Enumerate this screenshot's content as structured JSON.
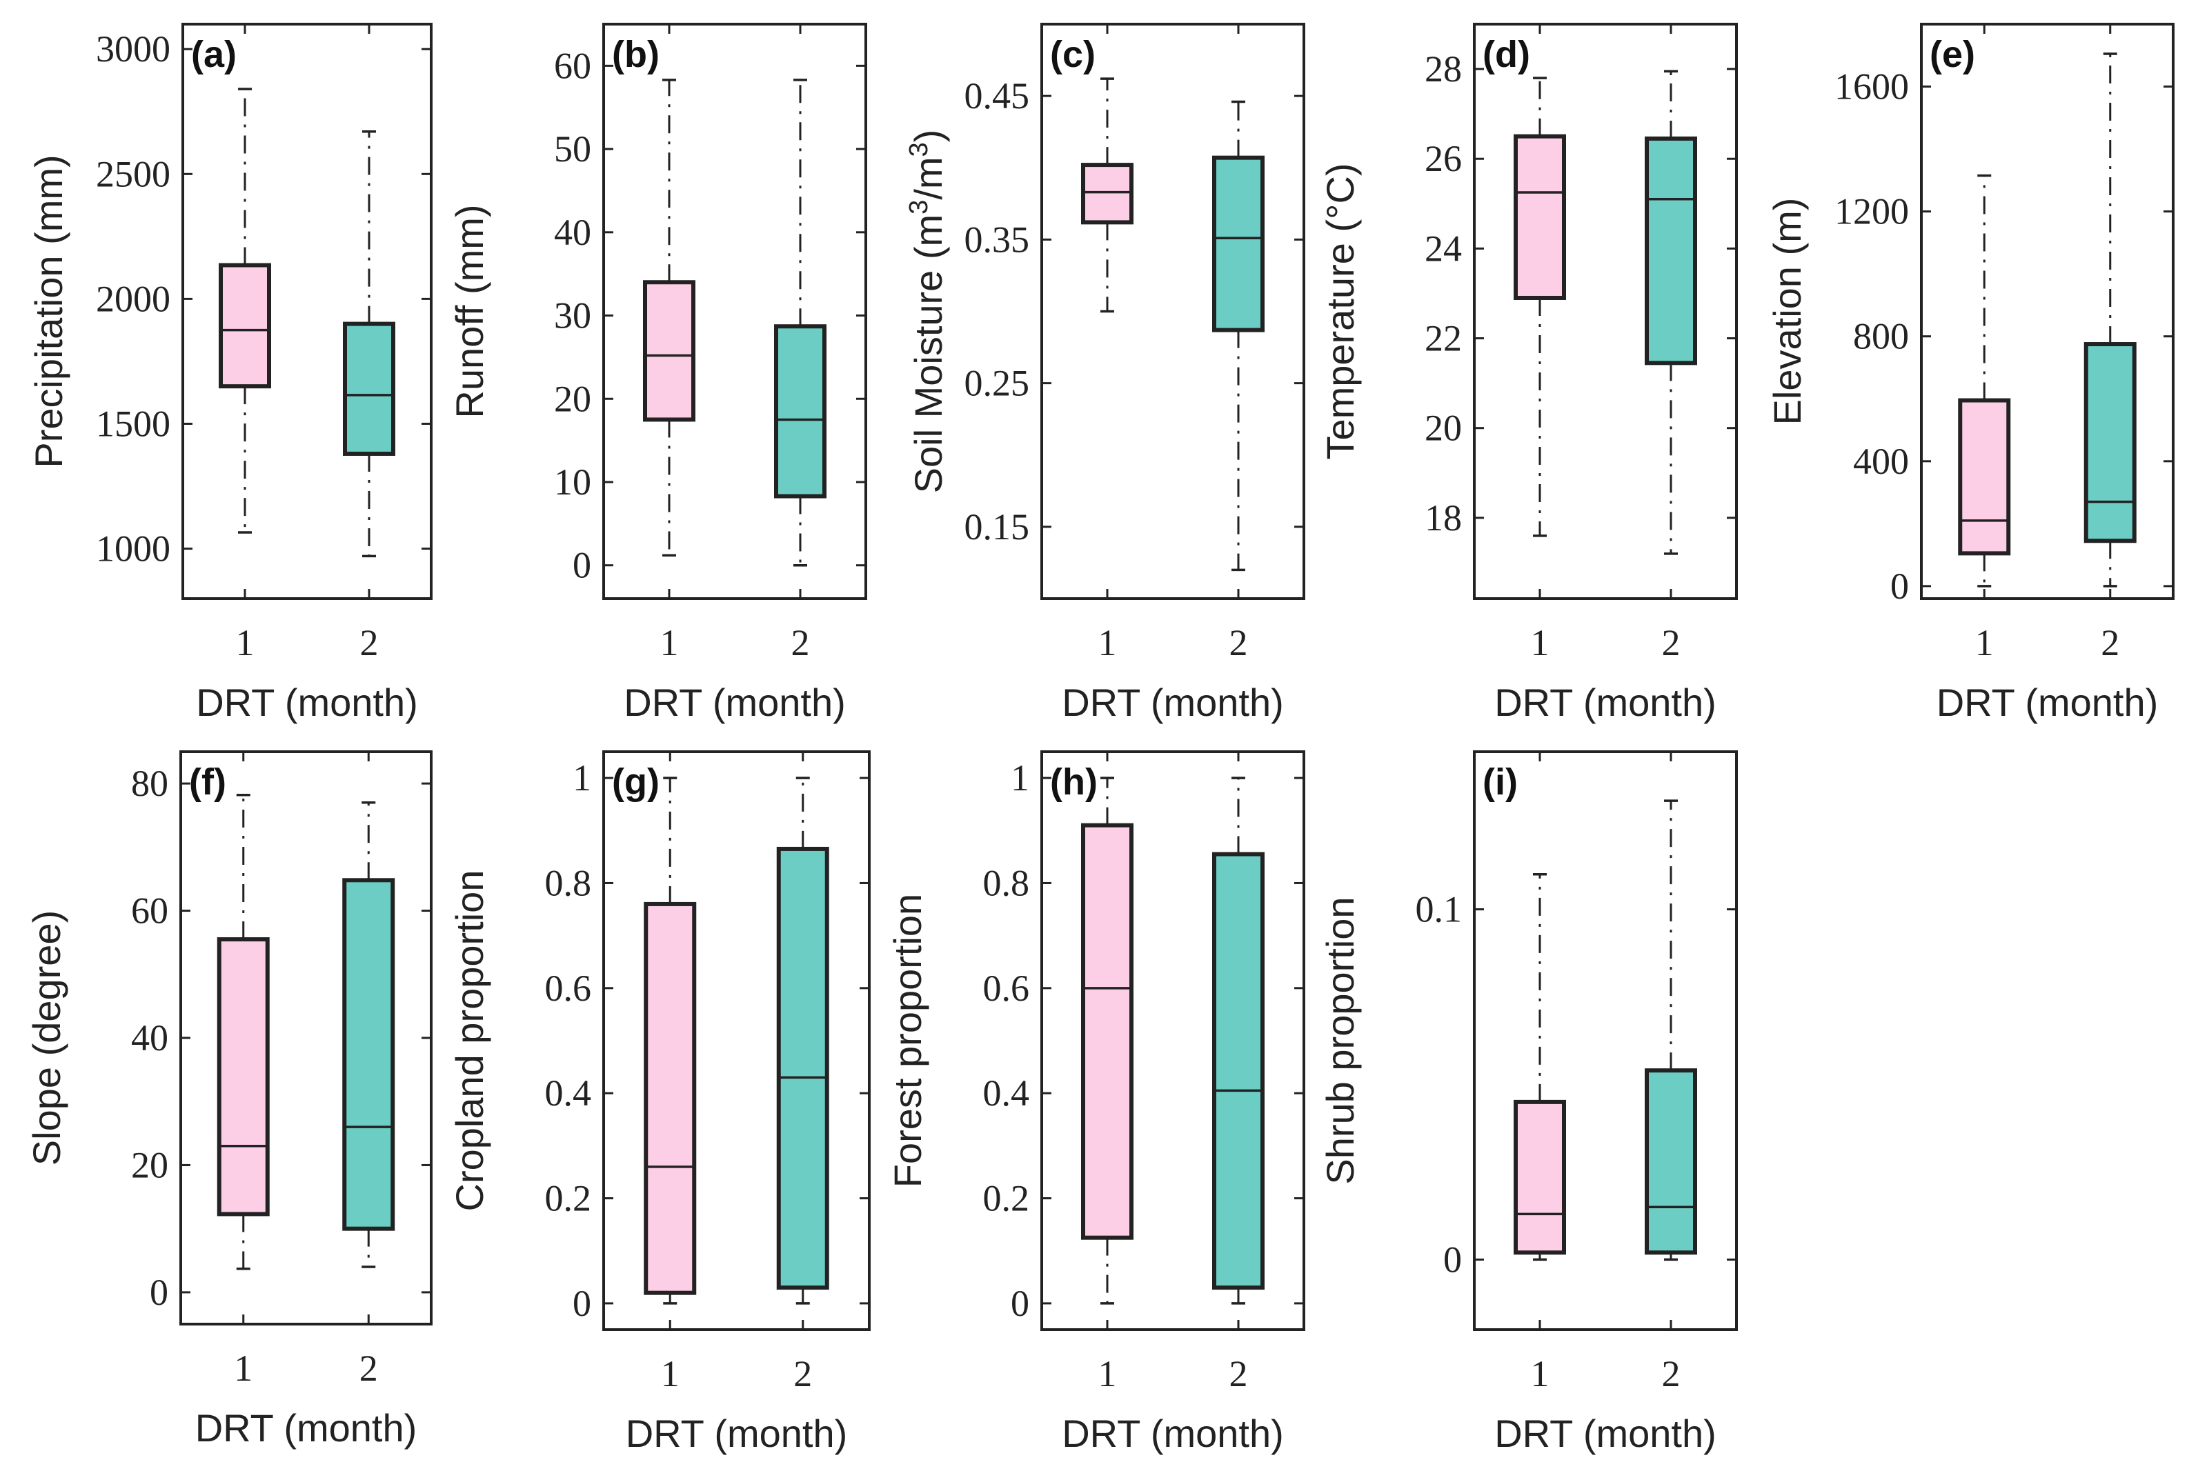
{
  "colors": {
    "dr1": "#fdcfe6",
    "dr2": "#6ccdc4",
    "ink": "#222222"
  },
  "chart_data": [
    {
      "type": "box",
      "panel": "(a)",
      "ylabel": "Precipitation (mm)",
      "xlabel": "DRT (month)",
      "categories": [
        "1",
        "2"
      ],
      "ylim": [
        800,
        3100
      ],
      "yticks": [
        1000,
        1500,
        2000,
        2500,
        3000
      ],
      "ytick_labels": [
        "1000",
        "1500",
        "2000",
        "2500",
        "3000"
      ],
      "boxes": [
        {
          "category": "1",
          "min": 1065,
          "q1": 1650,
          "median": 1875,
          "q3": 2135,
          "max": 2840
        },
        {
          "category": "2",
          "min": 970,
          "q1": 1380,
          "median": 1615,
          "q3": 1900,
          "max": 2670
        }
      ]
    },
    {
      "type": "box",
      "panel": "(b)",
      "ylabel": "Runoff (mm)",
      "xlabel": "DRT (month)",
      "categories": [
        "1",
        "2"
      ],
      "ylim": [
        -4,
        65
      ],
      "yticks": [
        0,
        10,
        20,
        30,
        40,
        50,
        60
      ],
      "ytick_labels": [
        "0",
        "10",
        "20",
        "30",
        "40",
        "50",
        "60"
      ],
      "boxes": [
        {
          "category": "1",
          "min": 1.2,
          "q1": 17.5,
          "median": 25.2,
          "q3": 34,
          "max": 58.3
        },
        {
          "category": "2",
          "min": 0,
          "q1": 8.3,
          "median": 17.5,
          "q3": 28.7,
          "max": 58.3
        }
      ]
    },
    {
      "type": "box",
      "panel": "(c)",
      "ylabel": "Soil Moisture (m3/m3)",
      "xlabel": "DRT (month)",
      "categories": [
        "1",
        "2"
      ],
      "ylim": [
        0.1,
        0.5
      ],
      "yticks": [
        0.15,
        0.25,
        0.35,
        0.45
      ],
      "ytick_labels": [
        "0.15",
        "0.25",
        "0.35",
        "0.45"
      ],
      "boxes": [
        {
          "category": "1",
          "min": 0.3,
          "q1": 0.362,
          "median": 0.383,
          "q3": 0.402,
          "max": 0.462
        },
        {
          "category": "2",
          "min": 0.12,
          "q1": 0.287,
          "median": 0.351,
          "q3": 0.407,
          "max": 0.446
        }
      ]
    },
    {
      "type": "box",
      "panel": "(d)",
      "ylabel": "Temperature (°C)",
      "xlabel": "DRT (month)",
      "categories": [
        "1",
        "2"
      ],
      "ylim": [
        16.2,
        29
      ],
      "yticks": [
        18,
        20,
        22,
        24,
        26,
        28
      ],
      "ytick_labels": [
        "18",
        "20",
        "22",
        "24",
        "26",
        "28"
      ],
      "boxes": [
        {
          "category": "1",
          "min": 17.6,
          "q1": 22.9,
          "median": 25.25,
          "q3": 26.5,
          "max": 27.8
        },
        {
          "category": "2",
          "min": 17.2,
          "q1": 21.45,
          "median": 25.1,
          "q3": 26.45,
          "max": 27.95
        }
      ]
    },
    {
      "type": "box",
      "panel": "(e)",
      "ylabel": "Elevation (m)",
      "xlabel": "DRT (month)",
      "categories": [
        "1",
        "2"
      ],
      "ylim": [
        -40,
        1800
      ],
      "yticks": [
        0,
        400,
        800,
        1200,
        1600
      ],
      "ytick_labels": [
        "0",
        "400",
        "800",
        "1200",
        "1600"
      ],
      "boxes": [
        {
          "category": "1",
          "min": 0,
          "q1": 105,
          "median": 210,
          "q3": 595,
          "max": 1315
        },
        {
          "category": "2",
          "min": 0,
          "q1": 145,
          "median": 270,
          "q3": 775,
          "max": 1705
        }
      ]
    },
    {
      "type": "box",
      "panel": "(f)",
      "ylabel": "Slope (degree)",
      "xlabel": "DRT (month)",
      "categories": [
        "1",
        "2"
      ],
      "ylim": [
        -5,
        85
      ],
      "yticks": [
        0,
        20,
        40,
        60,
        80
      ],
      "ytick_labels": [
        "0",
        "20",
        "40",
        "60",
        "80"
      ],
      "boxes": [
        {
          "category": "1",
          "min": 3.7,
          "q1": 12.3,
          "median": 23,
          "q3": 55.5,
          "max": 78.2
        },
        {
          "category": "2",
          "min": 4,
          "q1": 10,
          "median": 26,
          "q3": 64.8,
          "max": 77
        }
      ]
    },
    {
      "type": "box",
      "panel": "(g)",
      "ylabel": "Cropland proportion",
      "xlabel": "DRT (month)",
      "categories": [
        "1",
        "2"
      ],
      "ylim": [
        -0.05,
        1.05
      ],
      "yticks": [
        0,
        0.2,
        0.4,
        0.6,
        0.8,
        1
      ],
      "ytick_labels": [
        "0",
        "0.2",
        "0.4",
        "0.6",
        "0.8",
        "1"
      ],
      "boxes": [
        {
          "category": "1",
          "min": 0,
          "q1": 0.02,
          "median": 0.26,
          "q3": 0.76,
          "max": 1
        },
        {
          "category": "2",
          "min": 0,
          "q1": 0.03,
          "median": 0.43,
          "q3": 0.865,
          "max": 1
        }
      ]
    },
    {
      "type": "box",
      "panel": "(h)",
      "ylabel": "Forest proportion",
      "xlabel": "DRT (month)",
      "categories": [
        "1",
        "2"
      ],
      "ylim": [
        -0.05,
        1.05
      ],
      "yticks": [
        0,
        0.2,
        0.4,
        0.6,
        0.8,
        1
      ],
      "ytick_labels": [
        "0",
        "0.2",
        "0.4",
        "0.6",
        "0.8",
        "1"
      ],
      "boxes": [
        {
          "category": "1",
          "min": 0,
          "q1": 0.125,
          "median": 0.6,
          "q3": 0.91,
          "max": 1
        },
        {
          "category": "2",
          "min": 0,
          "q1": 0.03,
          "median": 0.405,
          "q3": 0.855,
          "max": 1
        }
      ]
    },
    {
      "type": "box",
      "panel": "(i)",
      "ylabel": "Shrub proportion",
      "xlabel": "DRT (month)",
      "categories": [
        "1",
        "2"
      ],
      "ylim": [
        -0.02,
        0.145
      ],
      "yticks": [
        0,
        0.1
      ],
      "ytick_labels": [
        "0",
        "0.1"
      ],
      "boxes": [
        {
          "category": "1",
          "min": 0,
          "q1": 0.002,
          "median": 0.013,
          "q3": 0.045,
          "max": 0.11
        },
        {
          "category": "2",
          "min": 0,
          "q1": 0.002,
          "median": 0.015,
          "q3": 0.054,
          "max": 0.131
        }
      ]
    }
  ]
}
